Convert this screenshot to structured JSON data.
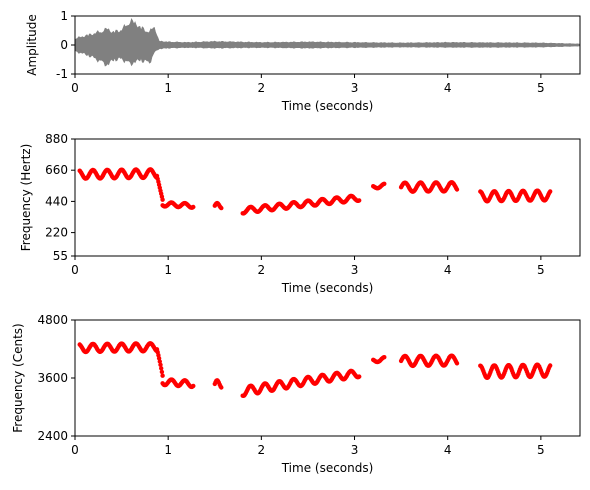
{
  "chart_data": [
    {
      "type": "line",
      "xlabel": "Time (seconds)",
      "ylabel": "Amplitude",
      "xlim": [
        0,
        5.42
      ],
      "ylim": [
        -1,
        1
      ],
      "xticks": [
        0,
        1,
        2,
        3,
        4,
        5
      ],
      "yticks": [
        -1,
        0,
        1
      ],
      "series_color": "#808080",
      "envelope": {
        "x": [
          0,
          0.1,
          0.2,
          0.3,
          0.35,
          0.4,
          0.5,
          0.6,
          0.65,
          0.7,
          0.8,
          0.85,
          0.9,
          1.0,
          1.2,
          1.5,
          2.0,
          2.5,
          3.0,
          3.5,
          4.0,
          4.5,
          5.0,
          5.42
        ],
        "max": [
          0.25,
          0.35,
          0.45,
          0.55,
          0.65,
          0.5,
          0.6,
          0.95,
          0.85,
          0.7,
          0.5,
          0.75,
          0.15,
          0.12,
          0.1,
          0.14,
          0.1,
          0.12,
          0.1,
          0.08,
          0.1,
          0.09,
          0.08,
          0.04
        ],
        "min": [
          -0.25,
          -0.35,
          -0.5,
          -0.7,
          -0.8,
          -0.6,
          -0.55,
          -0.75,
          -0.65,
          -0.6,
          -0.7,
          -0.3,
          -0.15,
          -0.12,
          -0.1,
          -0.12,
          -0.1,
          -0.12,
          -0.1,
          -0.08,
          -0.09,
          -0.09,
          -0.08,
          -0.04
        ]
      }
    },
    {
      "type": "scatter",
      "xlabel": "Time (seconds)",
      "ylabel": "Frequency (Hertz)",
      "xlim": [
        0,
        5.42
      ],
      "ylim": [
        55,
        880
      ],
      "xticks": [
        0,
        1,
        2,
        3,
        4,
        5
      ],
      "yticks": [
        55,
        220,
        440,
        660,
        880
      ],
      "marker_color": "#ff0000",
      "segments": [
        {
          "t": [
            0.05,
            0.88
          ],
          "base": 630,
          "slope": 8,
          "amp": 30,
          "rate": 6.5
        },
        {
          "t": [
            0.88,
            0.94
          ],
          "base": 620,
          "slope": -2800,
          "amp": 0,
          "rate": 0
        },
        {
          "t": [
            0.94,
            1.27
          ],
          "base": 420,
          "slope": -30,
          "amp": 15,
          "rate": 7
        },
        {
          "t": [
            1.5,
            1.57
          ],
          "base": 410,
          "slope": 0,
          "amp": 18,
          "rate": 10
        },
        {
          "t": [
            1.8,
            3.05
          ],
          "base": 375,
          "slope": 72,
          "amp": 20,
          "rate": 6.5
        },
        {
          "t": [
            3.2,
            3.32
          ],
          "base": 540,
          "slope": 100,
          "amp": 12,
          "rate": 7
        },
        {
          "t": [
            3.5,
            4.1
          ],
          "base": 540,
          "slope": 5,
          "amp": 32,
          "rate": 6
        },
        {
          "t": [
            4.35,
            5.1
          ],
          "base": 475,
          "slope": 10,
          "amp": 35,
          "rate": 6.5
        }
      ]
    },
    {
      "type": "scatter",
      "xlabel": "Time (seconds)",
      "ylabel": "Frequency (Cents)",
      "xlim": [
        0,
        5.42
      ],
      "ylim": [
        2400,
        4800
      ],
      "xticks": [
        0,
        1,
        2,
        3,
        4,
        5
      ],
      "yticks": [
        2400,
        3600,
        4800
      ],
      "marker_color": "#ff0000",
      "reference_hz": 55
    }
  ]
}
